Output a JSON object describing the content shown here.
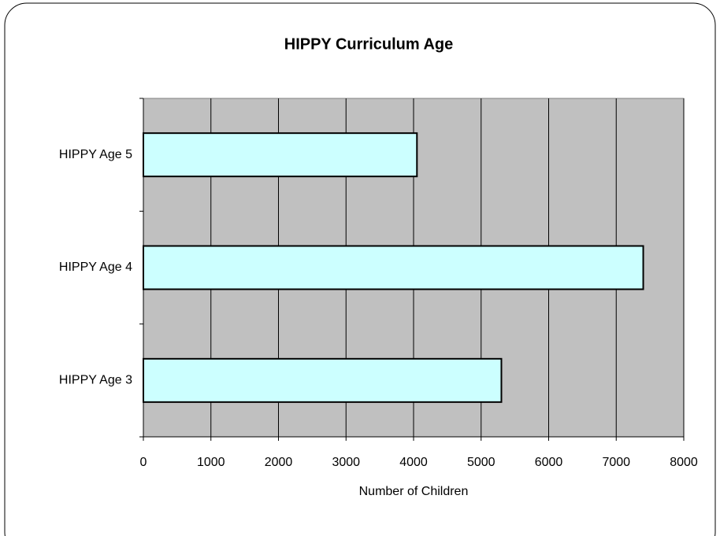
{
  "chart_data": {
    "type": "bar",
    "orientation": "horizontal",
    "title": "HIPPY Curriculum Age",
    "categories": [
      "HIPPY Age 3",
      "HIPPY Age 4",
      "HIPPY Age 5"
    ],
    "values": [
      5300,
      7400,
      4050
    ],
    "color": "#ccffff",
    "x_label": "Number of Children",
    "xlim": [
      0,
      8000
    ],
    "xticks": [
      0,
      1000,
      2000,
      3000,
      4000,
      5000,
      6000,
      7000,
      8000
    ],
    "grid": true
  }
}
